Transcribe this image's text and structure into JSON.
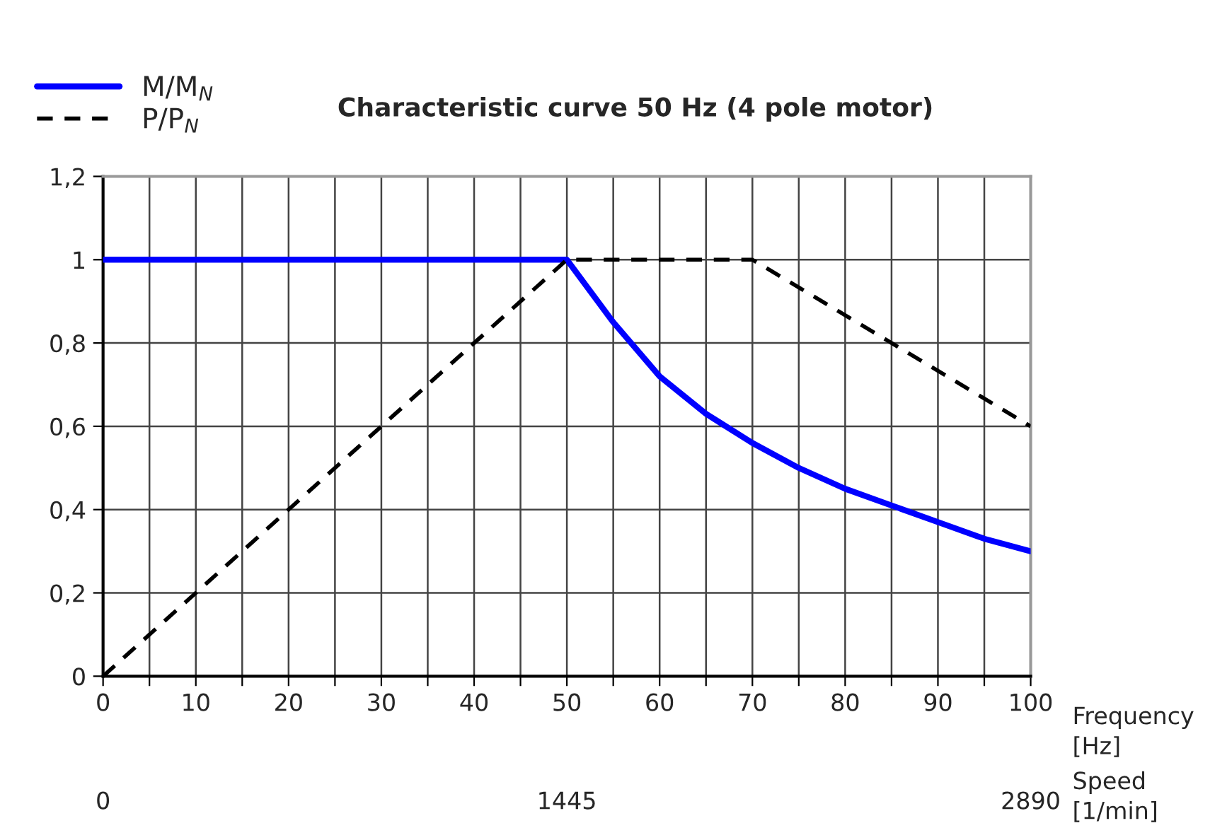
{
  "chart_data": {
    "type": "line",
    "title": "Characteristic curve 50 Hz (4 pole motor)",
    "xlabel": "Frequency\n[Hz]",
    "x2label": "Speed\n[1/min]",
    "series": [
      {
        "name": "M/M$_{N}$",
        "color": "#0000ff",
        "line_style": "solid",
        "x": [
          0,
          50,
          55,
          60,
          65,
          70,
          75,
          80,
          85,
          90,
          95,
          100
        ],
        "values": [
          1,
          1,
          0.85,
          0.72,
          0.63,
          0.56,
          0.5,
          0.45,
          0.41,
          0.37,
          0.33,
          0.3
        ]
      },
      {
        "name": "P/P$_{N}$",
        "color": "#000000",
        "line_style": "dashed",
        "x": [
          0,
          50,
          70,
          100
        ],
        "values": [
          0,
          1,
          1,
          0.6
        ]
      }
    ],
    "xlim": [
      0,
      100
    ],
    "xticks": [
      0,
      {
        "value": 5,
        "label": null
      },
      10,
      {
        "value": 15,
        "label": null
      },
      20,
      {
        "value": 25,
        "label": null
      },
      30,
      {
        "value": 35,
        "label": null
      },
      40,
      {
        "value": 45,
        "label": null
      },
      50,
      {
        "value": 55,
        "label": null
      },
      60,
      {
        "value": 65,
        "label": null
      },
      70,
      {
        "value": 75,
        "label": null
      },
      80,
      {
        "value": 85,
        "label": null
      },
      90,
      {
        "value": 95,
        "label": null
      },
      100
    ],
    "x2lim": [
      0,
      2890
    ],
    "x2ticks": [
      0,
      1445,
      2890
    ],
    "ylim": [
      0,
      1.2
    ],
    "yticks": [
      0,
      {
        "value": 0.2,
        "label": "0,2"
      },
      {
        "value": 0.4,
        "label": "0,4"
      },
      {
        "value": 0.6,
        "label": "0,6"
      },
      {
        "value": 0.8,
        "label": "0,8"
      },
      1,
      {
        "value": 1.2,
        "label": "1,2"
      }
    ],
    "grid": true,
    "legend": "top left",
    "marker": "none"
  }
}
